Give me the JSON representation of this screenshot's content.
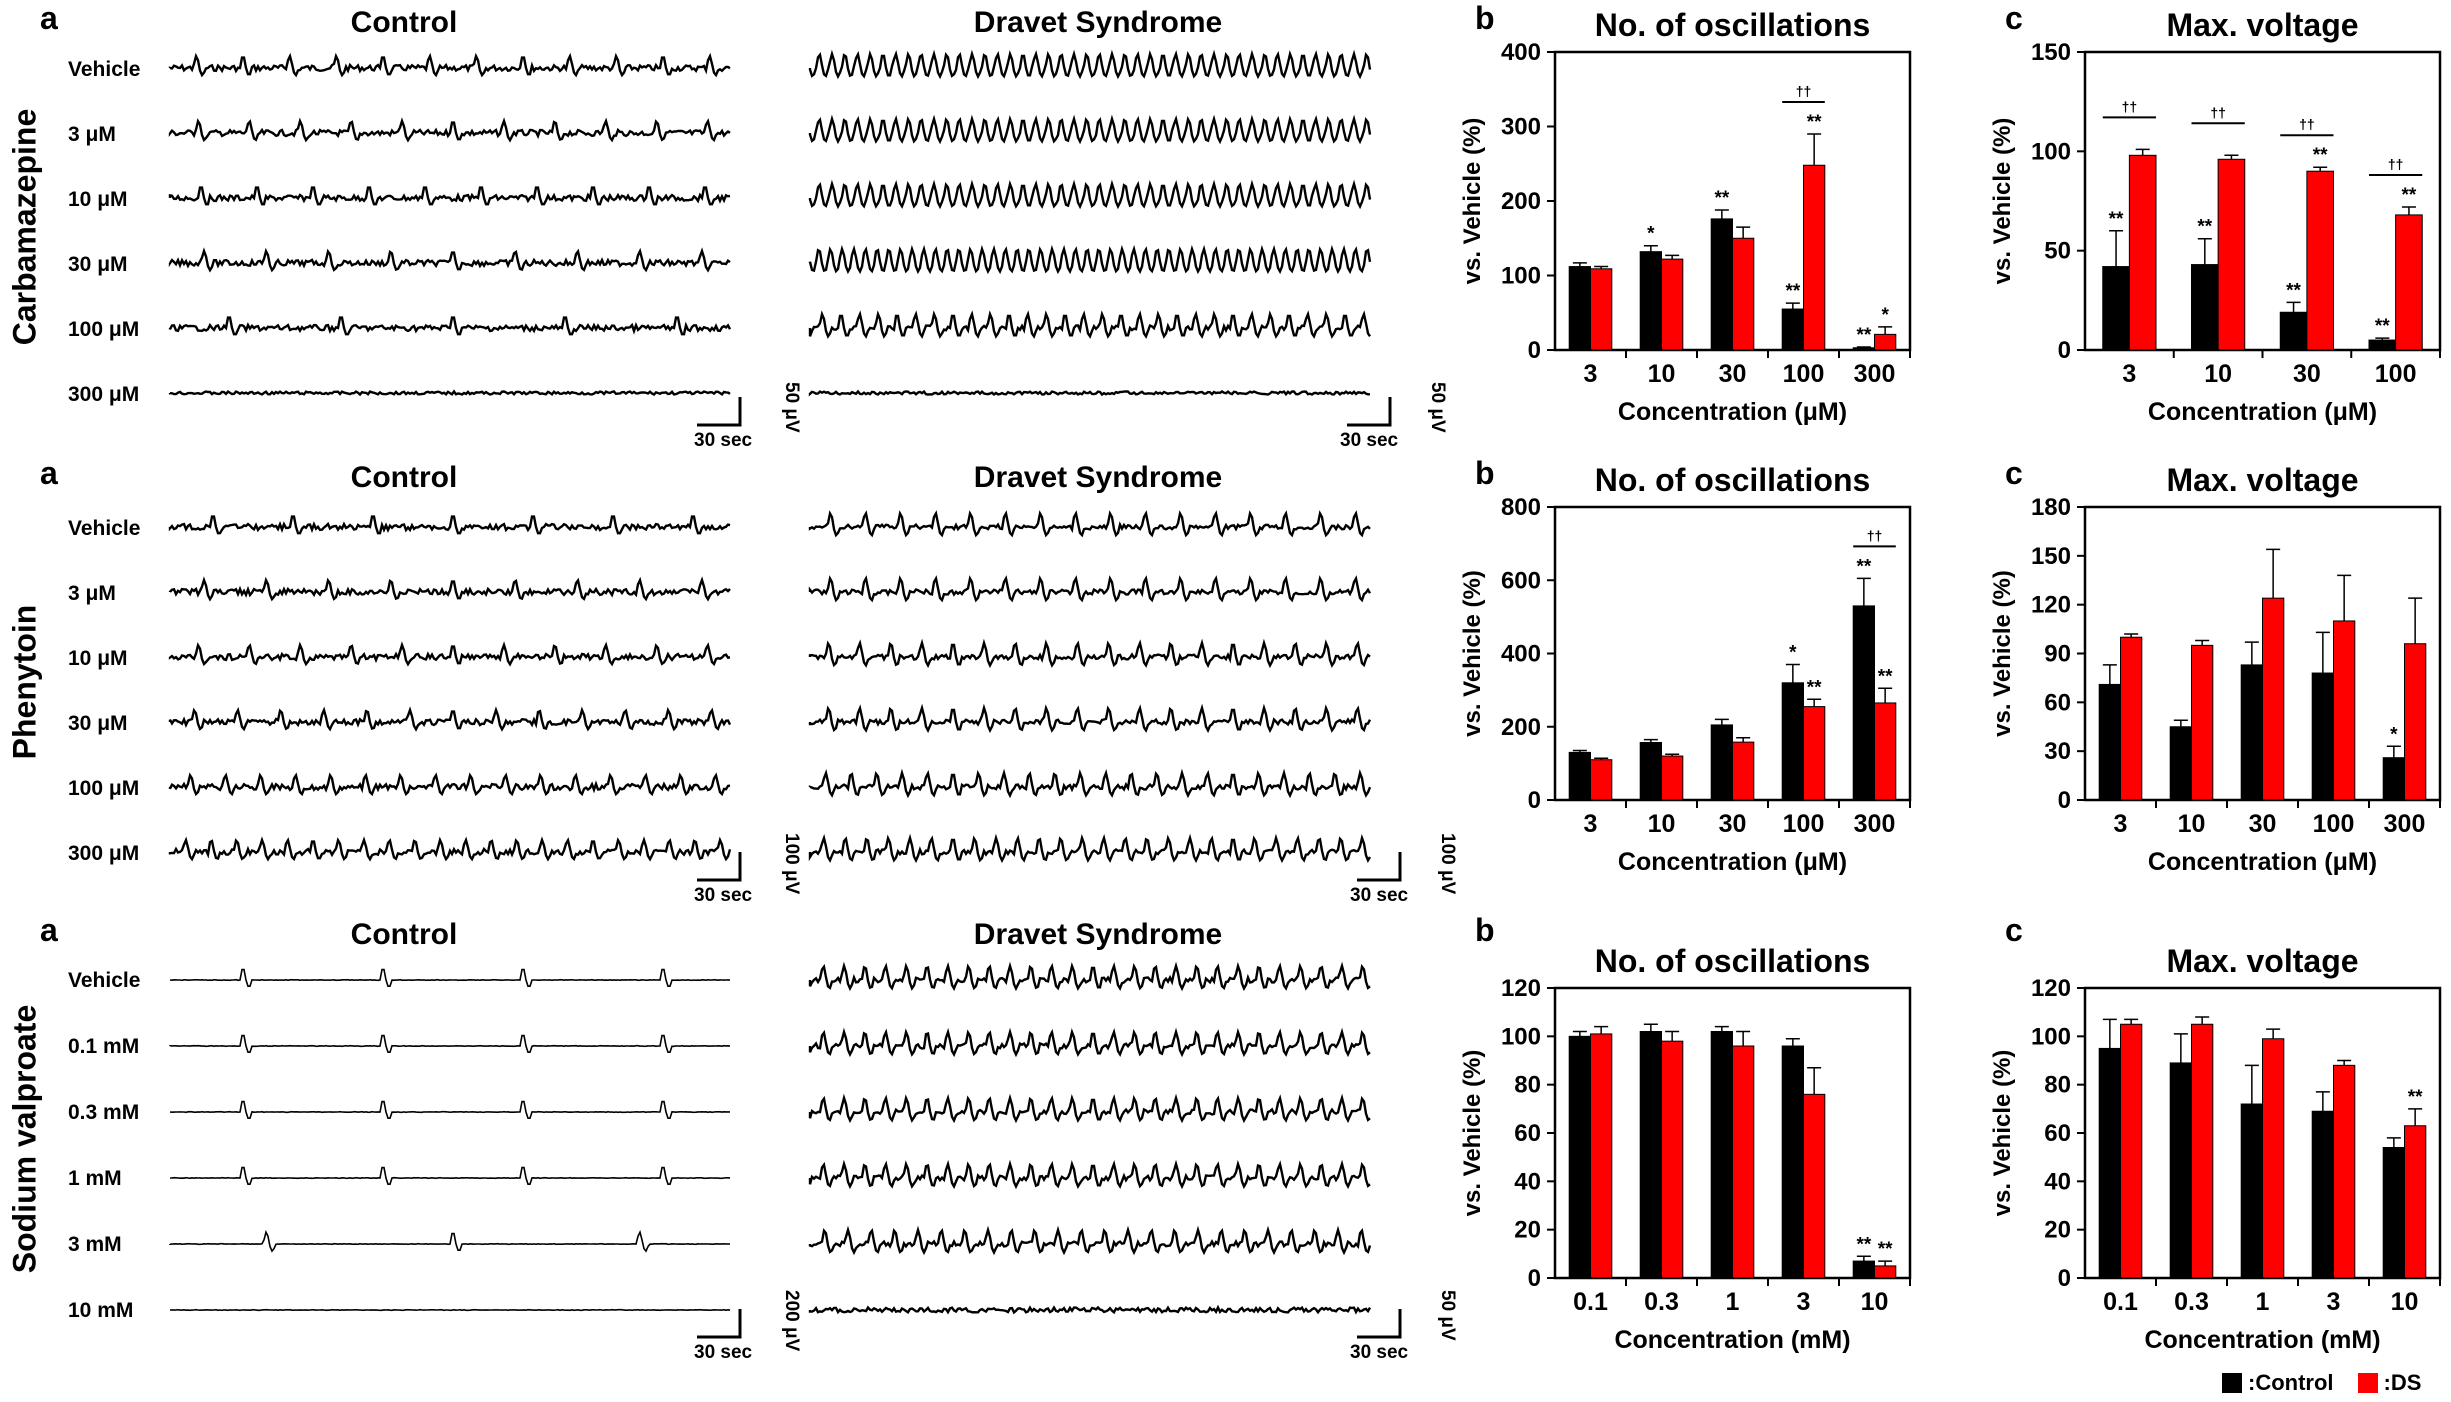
{
  "blocks": [
    {
      "drug": "Carbamazepine",
      "letters": {
        "a": "a",
        "b": "b",
        "c": "c"
      },
      "group_titles": [
        "Control",
        "Dravet Syndrome"
      ],
      "rows": [
        "Vehicle",
        "3 μM",
        "10 μM",
        "30 μM",
        "100 μM",
        "300 μM"
      ],
      "trace_style": [
        "dense",
        "dense",
        "dense",
        "dense",
        "dense",
        "flat"
      ],
      "ctrl_bursts": [
        12,
        11,
        10,
        9,
        5,
        0
      ],
      "ds_spikes": [
        44,
        44,
        44,
        48,
        30,
        0
      ],
      "scale_time": "30 sec",
      "scale_amp_ctrl": "50 μV",
      "scale_amp_ds": "50 μV"
    },
    {
      "drug": "Phenytoin",
      "letters": {
        "a": "a",
        "b": "b",
        "c": "c"
      },
      "group_titles": [
        "Control",
        "Dravet Syndrome"
      ],
      "rows": [
        "Vehicle",
        "3 μM",
        "10 μM",
        "30 μM",
        "100 μM",
        "300 μM"
      ],
      "trace_style": [
        "dense",
        "dense",
        "dense",
        "dense",
        "dense",
        "dense"
      ],
      "ctrl_bursts": [
        7,
        9,
        11,
        13,
        16,
        22
      ],
      "ds_spikes": [
        16,
        16,
        18,
        18,
        22,
        26
      ],
      "scale_time": "30 sec",
      "scale_amp_ctrl": "100 μV",
      "scale_amp_ds": "100 μV"
    },
    {
      "drug": "Sodium valproate",
      "letters": {
        "a": "a",
        "b": "b",
        "c": "c"
      },
      "group_titles": [
        "Control",
        "Dravet Syndrome"
      ],
      "rows": [
        "Vehicle",
        "0.1 mM",
        "0.3 mM",
        "1 mM",
        "3 mM",
        "10 mM"
      ],
      "trace_style": [
        "thin",
        "thin",
        "thin",
        "thin",
        "thin",
        "thin"
      ],
      "ctrl_bursts": [
        4,
        4,
        4,
        4,
        3,
        0
      ],
      "ds_spikes": [
        27,
        27,
        27,
        27,
        24,
        0
      ],
      "scale_time": "30 sec",
      "scale_amp_ctrl": "200 μV",
      "scale_amp_ds": "50 μV"
    }
  ],
  "chart_data": [
    {
      "id": "carbamazepine-oscillations",
      "type": "bar",
      "title": "No. of oscillations",
      "xlabel": "Concentration (μM)",
      "ylabel": "vs. Vehicle (%)",
      "categories": [
        "3",
        "10",
        "30",
        "100",
        "300"
      ],
      "ylim": [
        0,
        400
      ],
      "yticks": [
        0,
        100,
        200,
        300,
        400
      ],
      "series": [
        {
          "name": "Control",
          "color": "#000000",
          "values": [
            112,
            132,
            176,
            55,
            3
          ],
          "errors": [
            5,
            8,
            12,
            8,
            1
          ],
          "labels": [
            "",
            "*",
            "**",
            "**",
            "**"
          ]
        },
        {
          "name": "DS",
          "color": "#ff0000",
          "values": [
            109,
            122,
            150,
            248,
            21
          ],
          "errors": [
            3,
            5,
            15,
            42,
            10
          ],
          "labels": [
            "",
            "",
            "",
            "**",
            "*"
          ]
        }
      ],
      "brackets": [
        {
          "cat": 3,
          "label": "††"
        }
      ]
    },
    {
      "id": "carbamazepine-voltage",
      "type": "bar",
      "title": "Max. voltage",
      "xlabel": "Concentration (μM)",
      "ylabel": "vs. Vehicle (%)",
      "categories": [
        "3",
        "10",
        "30",
        "100"
      ],
      "ylim": [
        0,
        150
      ],
      "yticks": [
        0,
        50,
        100,
        150
      ],
      "series": [
        {
          "name": "Control",
          "color": "#000000",
          "values": [
            42,
            43,
            19,
            5
          ],
          "errors": [
            18,
            13,
            5,
            1
          ],
          "labels": [
            "**",
            "**",
            "**",
            "**"
          ]
        },
        {
          "name": "DS",
          "color": "#ff0000",
          "values": [
            98,
            96,
            90,
            68
          ],
          "errors": [
            3,
            2,
            2,
            4
          ],
          "labels": [
            "",
            "",
            "**",
            "**"
          ]
        }
      ],
      "brackets": [
        {
          "cat": 0,
          "label": "††"
        },
        {
          "cat": 1,
          "label": "††"
        },
        {
          "cat": 2,
          "label": "††"
        },
        {
          "cat": 3,
          "label": "††"
        }
      ]
    },
    {
      "id": "phenytoin-oscillations",
      "type": "bar",
      "title": "No. of oscillations",
      "xlabel": "Concentration (μM)",
      "ylabel": "vs. Vehicle (%)",
      "categories": [
        "3",
        "10",
        "30",
        "100",
        "300"
      ],
      "ylim": [
        0,
        800
      ],
      "yticks": [
        0,
        200,
        400,
        600,
        800
      ],
      "series": [
        {
          "name": "Control",
          "color": "#000000",
          "values": [
            130,
            157,
            205,
            320,
            530
          ],
          "errors": [
            5,
            8,
            15,
            50,
            75
          ],
          "labels": [
            "",
            "",
            "",
            "*",
            "**"
          ]
        },
        {
          "name": "DS",
          "color": "#ff0000",
          "values": [
            110,
            120,
            158,
            255,
            265
          ],
          "errors": [
            4,
            5,
            12,
            20,
            40
          ],
          "labels": [
            "",
            "",
            "",
            "**",
            "**"
          ]
        }
      ],
      "brackets": [
        {
          "cat": 4,
          "label": "††"
        }
      ]
    },
    {
      "id": "phenytoin-voltage",
      "type": "bar",
      "title": "Max. voltage",
      "xlabel": "Concentration (μM)",
      "ylabel": "vs. Vehicle (%)",
      "categories": [
        "3",
        "10",
        "30",
        "100",
        "300"
      ],
      "ylim": [
        0,
        180
      ],
      "yticks": [
        0,
        30,
        60,
        90,
        120,
        150,
        180
      ],
      "series": [
        {
          "name": "Control",
          "color": "#000000",
          "values": [
            71,
            45,
            83,
            78,
            26
          ],
          "errors": [
            12,
            4,
            14,
            25,
            7
          ],
          "labels": [
            "",
            "",
            "",
            "",
            "*"
          ]
        },
        {
          "name": "DS",
          "color": "#ff0000",
          "values": [
            100,
            95,
            124,
            110,
            96
          ],
          "errors": [
            2,
            3,
            30,
            28,
            28
          ],
          "labels": [
            "",
            "",
            "",
            "",
            ""
          ]
        }
      ],
      "brackets": []
    },
    {
      "id": "valproate-oscillations",
      "type": "bar",
      "title": "No. of oscillations",
      "xlabel": "Concentration (mM)",
      "ylabel": "vs. Vehicle (%)",
      "categories": [
        "0.1",
        "0.3",
        "1",
        "3",
        "10"
      ],
      "ylim": [
        0,
        120
      ],
      "yticks": [
        0,
        20,
        40,
        60,
        80,
        100,
        120
      ],
      "series": [
        {
          "name": "Control",
          "color": "#000000",
          "values": [
            100,
            102,
            102,
            96,
            7
          ],
          "errors": [
            2,
            3,
            2,
            3,
            2
          ],
          "labels": [
            "",
            "",
            "",
            "",
            "**"
          ]
        },
        {
          "name": "DS",
          "color": "#ff0000",
          "values": [
            101,
            98,
            96,
            76,
            5
          ],
          "errors": [
            3,
            4,
            6,
            11,
            2
          ],
          "labels": [
            "",
            "",
            "",
            "",
            "**"
          ]
        }
      ],
      "brackets": []
    },
    {
      "id": "valproate-voltage",
      "type": "bar",
      "title": "Max. voltage",
      "xlabel": "Concentration (mM)",
      "ylabel": "vs. Vehicle (%)",
      "categories": [
        "0.1",
        "0.3",
        "1",
        "3",
        "10"
      ],
      "ylim": [
        0,
        120
      ],
      "yticks": [
        0,
        20,
        40,
        60,
        80,
        100,
        120
      ],
      "series": [
        {
          "name": "Control",
          "color": "#000000",
          "values": [
            95,
            89,
            72,
            69,
            54
          ],
          "errors": [
            12,
            12,
            16,
            8,
            4
          ],
          "labels": [
            "",
            "",
            "",
            "",
            ""
          ]
        },
        {
          "name": "DS",
          "color": "#ff0000",
          "values": [
            105,
            105,
            99,
            88,
            63
          ],
          "errors": [
            2,
            3,
            4,
            2,
            7
          ],
          "labels": [
            "",
            "",
            "",
            "",
            "**"
          ]
        }
      ],
      "brackets": []
    }
  ],
  "legend": {
    "control_label": ":Control",
    "ds_label": ":DS",
    "control_color": "#000000",
    "ds_color": "#ff0000"
  }
}
